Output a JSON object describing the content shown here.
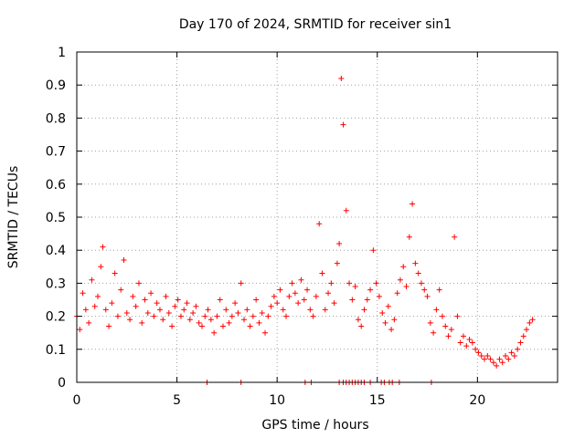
{
  "chart_data": {
    "type": "scatter",
    "title": "Day 170 of 2024, SRMTID for receiver sin1",
    "xlabel": "GPS time / hours",
    "ylabel": "SRMTID / TECUs",
    "xlim": [
      0,
      24
    ],
    "ylim": [
      0,
      1
    ],
    "x_ticks": [
      0,
      5,
      10,
      15,
      20
    ],
    "x_tick_labels": [
      "0",
      "5",
      "10",
      "15",
      "20"
    ],
    "y_ticks": [
      0,
      0.1,
      0.2,
      0.3,
      0.4,
      0.5,
      0.6,
      0.7,
      0.8,
      0.9,
      1
    ],
    "y_tick_labels": [
      "0",
      "0.1",
      "0.2",
      "0.3",
      "0.4",
      "0.5",
      "0.6",
      "0.7",
      "0.8",
      "0.9",
      "1"
    ],
    "grid": true,
    "marker": "+",
    "series": [
      {
        "name": "SRMTID",
        "color": "#ff0000",
        "x": [
          0.0,
          0.15,
          0.3,
          0.45,
          0.6,
          0.75,
          0.9,
          1.05,
          1.2,
          1.3,
          1.45,
          1.6,
          1.75,
          1.9,
          2.05,
          2.2,
          2.35,
          2.5,
          2.65,
          2.8,
          2.95,
          3.1,
          3.25,
          3.4,
          3.55,
          3.7,
          3.85,
          4.0,
          4.15,
          4.3,
          4.45,
          4.6,
          4.75,
          4.9,
          5.05,
          5.2,
          5.35,
          5.5,
          5.65,
          5.8,
          5.95,
          6.1,
          6.25,
          6.4,
          6.55,
          6.7,
          6.85,
          7.0,
          7.15,
          7.3,
          7.45,
          7.6,
          7.75,
          7.9,
          8.05,
          8.2,
          8.35,
          8.5,
          8.65,
          8.8,
          8.95,
          9.1,
          9.25,
          9.4,
          9.55,
          9.7,
          9.85,
          10.0,
          10.15,
          10.3,
          10.45,
          10.6,
          10.75,
          10.9,
          11.05,
          11.2,
          11.35,
          11.5,
          11.65,
          11.8,
          11.95,
          12.1,
          12.25,
          12.4,
          12.55,
          12.7,
          12.85,
          13.0,
          13.1,
          13.2,
          13.3,
          13.45,
          13.6,
          13.75,
          13.9,
          14.05,
          14.2,
          14.35,
          14.5,
          14.65,
          14.8,
          14.95,
          15.1,
          15.25,
          15.4,
          15.55,
          15.7,
          15.85,
          16.0,
          16.15,
          16.3,
          16.45,
          16.6,
          16.75,
          16.9,
          17.05,
          17.2,
          17.35,
          17.5,
          17.65,
          17.8,
          17.95,
          18.1,
          18.25,
          18.4,
          18.55,
          18.7,
          18.85,
          19.0,
          19.15,
          19.3,
          19.45,
          19.6,
          19.75,
          19.9,
          20.05,
          20.2,
          20.35,
          20.5,
          20.65,
          20.8,
          20.95,
          21.1,
          21.25,
          21.4,
          21.55,
          21.7,
          21.85,
          22.0,
          22.15,
          22.3,
          22.45,
          22.6,
          22.75
        ],
        "y": [
          0.2,
          0.16,
          0.27,
          0.22,
          0.18,
          0.31,
          0.23,
          0.26,
          0.35,
          0.41,
          0.22,
          0.17,
          0.24,
          0.33,
          0.2,
          0.28,
          0.37,
          0.21,
          0.19,
          0.26,
          0.23,
          0.3,
          0.18,
          0.25,
          0.21,
          0.27,
          0.2,
          0.24,
          0.22,
          0.19,
          0.26,
          0.21,
          0.17,
          0.23,
          0.25,
          0.2,
          0.22,
          0.24,
          0.19,
          0.21,
          0.23,
          0.18,
          0.17,
          0.2,
          0.22,
          0.19,
          0.15,
          0.2,
          0.25,
          0.17,
          0.22,
          0.18,
          0.2,
          0.24,
          0.21,
          0.3,
          0.19,
          0.22,
          0.17,
          0.2,
          0.25,
          0.18,
          0.21,
          0.15,
          0.2,
          0.23,
          0.26,
          0.24,
          0.28,
          0.22,
          0.2,
          0.26,
          0.3,
          0.27,
          0.24,
          0.31,
          0.25,
          0.28,
          0.22,
          0.2,
          0.26,
          0.48,
          0.33,
          0.22,
          0.27,
          0.3,
          0.24,
          0.36,
          0.42,
          0.92,
          0.78,
          0.52,
          0.3,
          0.25,
          0.29,
          0.19,
          0.17,
          0.22,
          0.25,
          0.28,
          0.4,
          0.3,
          0.26,
          0.21,
          0.18,
          0.23,
          0.16,
          0.19,
          0.27,
          0.31,
          0.35,
          0.29,
          0.44,
          0.54,
          0.36,
          0.33,
          0.3,
          0.28,
          0.26,
          0.18,
          0.15,
          0.22,
          0.28,
          0.2,
          0.17,
          0.14,
          0.16,
          0.44,
          0.2,
          0.12,
          0.14,
          0.11,
          0.13,
          0.12,
          0.1,
          0.09,
          0.08,
          0.07,
          0.08,
          0.07,
          0.06,
          0.05,
          0.07,
          0.06,
          0.08,
          0.07,
          0.09,
          0.08,
          0.1,
          0.12,
          0.14,
          0.16,
          0.18,
          0.19
        ]
      }
    ],
    "zero_markers_x": [
      6.5,
      8.2,
      11.4,
      11.7,
      13.1,
      13.3,
      13.45,
      13.6,
      13.75,
      13.9,
      14.05,
      14.2,
      14.35,
      14.65,
      15.2,
      15.35,
      15.6,
      15.75,
      16.1,
      17.7
    ]
  }
}
